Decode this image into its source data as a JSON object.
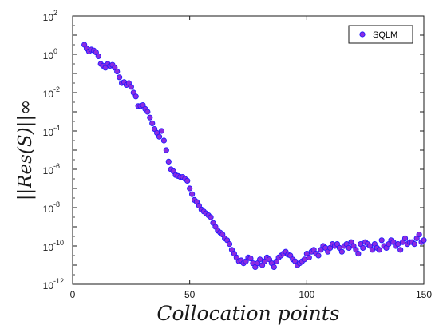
{
  "chart_data": {
    "type": "scatter",
    "title": "",
    "xlabel": "Collocation points",
    "ylabel": "||Res(S)||∞",
    "xlim": [
      0,
      150
    ],
    "ylim_exponents": [
      -12,
      2
    ],
    "y_scale": "log",
    "x_ticks": [
      0,
      50,
      100,
      150
    ],
    "y_tick_exponents": [
      -12,
      -10,
      -8,
      -6,
      -4,
      -2,
      0,
      2
    ],
    "y_tick_base": "10",
    "grid": false,
    "legend_position": "top-right",
    "marker_color": "#8a2be2",
    "marker_edge_color": "#1a1aff",
    "series": [
      {
        "name": "SQLM",
        "x": [
          5,
          6,
          7,
          8,
          9,
          10,
          11,
          12,
          13,
          14,
          15,
          16,
          17,
          18,
          19,
          20,
          21,
          22,
          23,
          24,
          25,
          26,
          27,
          28,
          29,
          30,
          31,
          32,
          33,
          34,
          35,
          36,
          37,
          38,
          39,
          40,
          41,
          42,
          43,
          44,
          45,
          46,
          47,
          48,
          49,
          50,
          51,
          52,
          53,
          54,
          55,
          56,
          57,
          58,
          59,
          60,
          61,
          62,
          63,
          64,
          65,
          66,
          67,
          68,
          69,
          70,
          71,
          72,
          73,
          74,
          75,
          76,
          77,
          78,
          79,
          80,
          81,
          82,
          83,
          84,
          85,
          86,
          87,
          88,
          89,
          90,
          91,
          92,
          93,
          94,
          95,
          96,
          97,
          98,
          99,
          100,
          101,
          102,
          103,
          104,
          105,
          106,
          107,
          108,
          109,
          110,
          111,
          112,
          113,
          114,
          115,
          116,
          117,
          118,
          119,
          120,
          121,
          122,
          123,
          124,
          125,
          126,
          127,
          128,
          129,
          130,
          131,
          132,
          133,
          134,
          135,
          136,
          137,
          138,
          139,
          140,
          141,
          142,
          143,
          144,
          145,
          146,
          147,
          148,
          149,
          150
        ],
        "log10_y": [
          0.5,
          0.3,
          0.15,
          0.25,
          0.2,
          0.1,
          -0.1,
          -0.5,
          -0.6,
          -0.7,
          -0.5,
          -0.6,
          -0.55,
          -0.7,
          -0.9,
          -1.2,
          -1.5,
          -1.45,
          -1.6,
          -1.5,
          -1.7,
          -2.0,
          -2.2,
          -2.7,
          -2.7,
          -2.65,
          -2.85,
          -3.0,
          -3.3,
          -3.6,
          -3.9,
          -4.1,
          -4.3,
          -4.0,
          -4.5,
          -5.0,
          -5.6,
          -6.0,
          -6.1,
          -6.3,
          -6.35,
          -6.4,
          -6.4,
          -6.5,
          -6.6,
          -7.0,
          -7.3,
          -7.6,
          -7.7,
          -7.9,
          -8.1,
          -8.2,
          -8.3,
          -8.4,
          -8.5,
          -8.8,
          -9.0,
          -9.2,
          -9.3,
          -9.4,
          -9.6,
          -9.7,
          -9.9,
          -10.2,
          -10.4,
          -10.6,
          -10.8,
          -10.75,
          -10.9,
          -10.8,
          -10.6,
          -10.65,
          -10.9,
          -11.1,
          -10.9,
          -10.7,
          -11.0,
          -10.8,
          -10.6,
          -10.7,
          -10.9,
          -11.1,
          -10.8,
          -10.6,
          -10.5,
          -10.4,
          -10.3,
          -10.45,
          -10.5,
          -10.7,
          -10.8,
          -11.0,
          -10.9,
          -10.8,
          -10.7,
          -10.4,
          -10.6,
          -10.3,
          -10.2,
          -10.4,
          -10.5,
          -10.2,
          -10.0,
          -10.1,
          -10.3,
          -10.1,
          -9.9,
          -10.0,
          -9.9,
          -10.1,
          -10.3,
          -10.0,
          -9.9,
          -10.1,
          -9.8,
          -10.0,
          -10.2,
          -10.4,
          -9.9,
          -10.1,
          -9.8,
          -9.9,
          -10.0,
          -10.2,
          -9.9,
          -10.1,
          -10.2,
          -9.7,
          -10.0,
          -10.1,
          -9.9,
          -9.7,
          -9.8,
          -10.0,
          -9.9,
          -10.2,
          -9.8,
          -9.6,
          -9.9,
          -9.8,
          -9.8,
          -9.9,
          -9.6,
          -9.4,
          -9.8,
          -9.7
        ]
      }
    ]
  }
}
